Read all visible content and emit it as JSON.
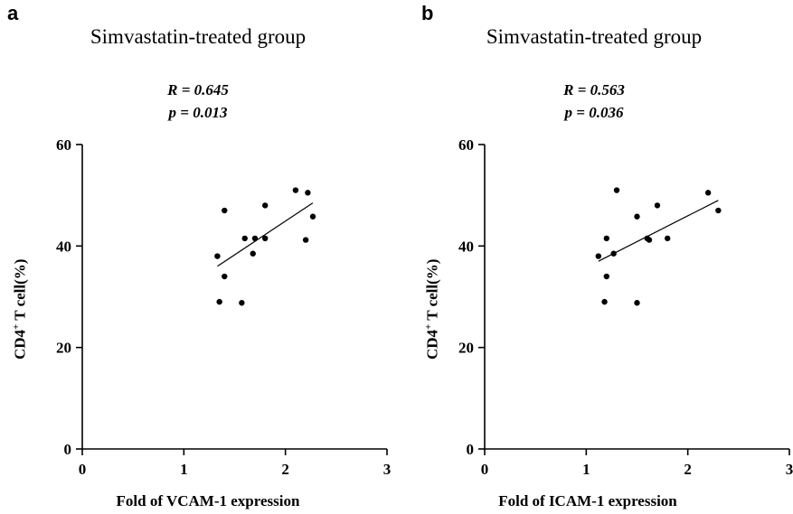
{
  "chart_data": [
    {
      "panel": "a",
      "type": "scatter",
      "title": "Simvastatin-treated group",
      "stats": {
        "r": "R = 0.645",
        "p": "p = 0.013"
      },
      "xlabel": "Fold of VCAM-1 expression",
      "ylabel_main": "CD4",
      "ylabel_sup": "+",
      "ylabel_rest": " T cell(%)",
      "xlim": [
        0,
        3
      ],
      "ylim": [
        0,
        60
      ],
      "xticks": [
        0,
        1,
        2,
        3
      ],
      "yticks": [
        0,
        20,
        40,
        60
      ],
      "grid": false,
      "points": [
        {
          "x": 1.33,
          "y": 38.0
        },
        {
          "x": 1.35,
          "y": 29.0
        },
        {
          "x": 1.4,
          "y": 34.0
        },
        {
          "x": 1.4,
          "y": 47.0
        },
        {
          "x": 1.57,
          "y": 28.8
        },
        {
          "x": 1.6,
          "y": 41.5
        },
        {
          "x": 1.68,
          "y": 38.5
        },
        {
          "x": 1.7,
          "y": 41.5
        },
        {
          "x": 1.8,
          "y": 48.0
        },
        {
          "x": 1.8,
          "y": 41.5
        },
        {
          "x": 2.1,
          "y": 51.0
        },
        {
          "x": 2.2,
          "y": 41.2
        },
        {
          "x": 2.22,
          "y": 50.5
        },
        {
          "x": 2.27,
          "y": 45.8
        }
      ],
      "fit": [
        {
          "x": 1.33,
          "y": 36.0
        },
        {
          "x": 2.27,
          "y": 48.5
        }
      ]
    },
    {
      "panel": "b",
      "type": "scatter",
      "title": "Simvastatin-treated group",
      "stats": {
        "r": "R = 0.563",
        "p": "p = 0.036"
      },
      "xlabel": "Fold of ICAM-1 expression",
      "ylabel_main": "CD4",
      "ylabel_sup": "+",
      "ylabel_rest": " T cell(%)",
      "xlim": [
        0,
        3
      ],
      "ylim": [
        0,
        60
      ],
      "xticks": [
        0,
        1,
        2,
        3
      ],
      "yticks": [
        0,
        20,
        40,
        60
      ],
      "grid": false,
      "points": [
        {
          "x": 1.12,
          "y": 38.0
        },
        {
          "x": 1.18,
          "y": 29.0
        },
        {
          "x": 1.2,
          "y": 41.5
        },
        {
          "x": 1.2,
          "y": 34.0
        },
        {
          "x": 1.27,
          "y": 38.5
        },
        {
          "x": 1.3,
          "y": 51.0
        },
        {
          "x": 1.5,
          "y": 28.8
        },
        {
          "x": 1.5,
          "y": 45.8
        },
        {
          "x": 1.6,
          "y": 41.5
        },
        {
          "x": 1.62,
          "y": 41.2
        },
        {
          "x": 1.7,
          "y": 48.0
        },
        {
          "x": 1.8,
          "y": 41.5
        },
        {
          "x": 2.2,
          "y": 50.5
        },
        {
          "x": 2.3,
          "y": 47.0
        }
      ],
      "fit": [
        {
          "x": 1.12,
          "y": 37.0
        },
        {
          "x": 2.3,
          "y": 49.0
        }
      ]
    }
  ]
}
